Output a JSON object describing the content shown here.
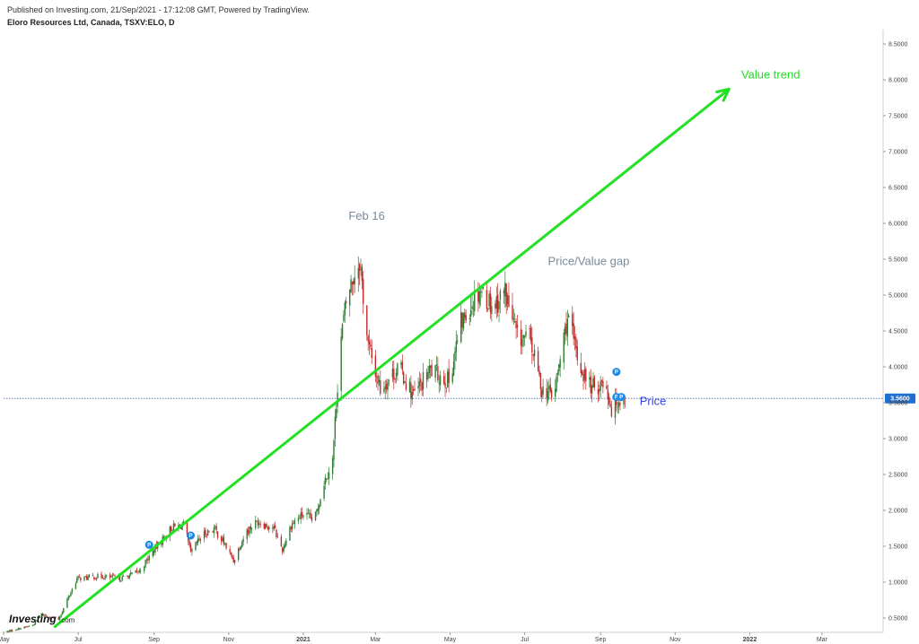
{
  "header": {
    "published": "Published on Investing.com, 21/Sep/2021 - 17:12:08 GMT, Powered by TradingView.",
    "symbol": "Eloro Resources Ltd, Canada, TSXV:ELO, D"
  },
  "logo": {
    "name": "Investing",
    "suffix": ".com"
  },
  "colors": {
    "up": "#2e7d32",
    "down": "#c62828",
    "trend": "#22e022",
    "price_line": "#4a6fa5",
    "price_tag": "#1f6fd1",
    "marker": "#1e88e5"
  },
  "chart_data": {
    "type": "candlestick",
    "title": "Eloro Resources Ltd, Canada, TSXV:ELO, D",
    "ylim": [
      0.3,
      8.7
    ],
    "y_ticks": [
      {
        "value": 0.5,
        "label": "0.5000"
      },
      {
        "value": 1.0,
        "label": "1.0000"
      },
      {
        "value": 1.5,
        "label": "1.5000"
      },
      {
        "value": 2.0,
        "label": "2.0000"
      },
      {
        "value": 2.5,
        "label": "2.5000"
      },
      {
        "value": 3.0,
        "label": "3.0000"
      },
      {
        "value": 3.5,
        "label": "3.5000"
      },
      {
        "value": 4.0,
        "label": "4.0000"
      },
      {
        "value": 4.5,
        "label": "4.5000"
      },
      {
        "value": 5.0,
        "label": "5.0000"
      },
      {
        "value": 5.5,
        "label": "5.5000"
      },
      {
        "value": 6.0,
        "label": "6.0000"
      },
      {
        "value": 6.5,
        "label": "6.5000"
      },
      {
        "value": 7.0,
        "label": "7.0000"
      },
      {
        "value": 7.5,
        "label": "7.5000"
      },
      {
        "value": 8.0,
        "label": "8.0000"
      },
      {
        "value": 8.5,
        "label": "8.5000"
      }
    ],
    "xlim": [
      "2020-05-01",
      "2022-04-20"
    ],
    "x_ticks": [
      {
        "date": "2020-05-01",
        "label": "May",
        "bold": false
      },
      {
        "date": "2020-07-01",
        "label": "Jul",
        "bold": false
      },
      {
        "date": "2020-09-01",
        "label": "Sep",
        "bold": false
      },
      {
        "date": "2020-11-01",
        "label": "Nov",
        "bold": false
      },
      {
        "date": "2021-01-01",
        "label": "2021",
        "bold": true
      },
      {
        "date": "2021-03-01",
        "label": "Mar",
        "bold": false
      },
      {
        "date": "2021-05-01",
        "label": "May",
        "bold": false
      },
      {
        "date": "2021-07-01",
        "label": "Jul",
        "bold": false
      },
      {
        "date": "2021-09-01",
        "label": "Sep",
        "bold": false
      },
      {
        "date": "2021-11-01",
        "label": "Nov",
        "bold": false
      },
      {
        "date": "2022-01-01",
        "label": "2022",
        "bold": true
      },
      {
        "date": "2022-03-01",
        "label": "Mar",
        "bold": false
      }
    ],
    "price_path": [
      [
        "2020-05-01",
        0.3
      ],
      [
        "2020-05-25",
        0.4
      ],
      [
        "2020-06-01",
        0.55
      ],
      [
        "2020-06-15",
        0.48
      ],
      [
        "2020-06-22",
        0.75
      ],
      [
        "2020-06-30",
        1.05
      ],
      [
        "2020-07-20",
        1.08
      ],
      [
        "2020-08-05",
        1.05
      ],
      [
        "2020-08-20",
        1.15
      ],
      [
        "2020-09-01",
        1.45
      ],
      [
        "2020-09-15",
        1.75
      ],
      [
        "2020-09-25",
        1.8
      ],
      [
        "2020-10-01",
        1.4
      ],
      [
        "2020-10-10",
        1.65
      ],
      [
        "2020-10-20",
        1.75
      ],
      [
        "2020-10-28",
        1.55
      ],
      [
        "2020-11-05",
        1.3
      ],
      [
        "2020-11-15",
        1.7
      ],
      [
        "2020-11-25",
        1.85
      ],
      [
        "2020-12-08",
        1.75
      ],
      [
        "2020-12-15",
        1.45
      ],
      [
        "2020-12-22",
        1.8
      ],
      [
        "2021-01-01",
        1.95
      ],
      [
        "2021-01-10",
        1.85
      ],
      [
        "2021-01-18",
        2.4
      ],
      [
        "2021-01-25",
        2.7
      ],
      [
        "2021-01-31",
        4.3
      ],
      [
        "2021-02-06",
        5.0
      ],
      [
        "2021-02-16",
        5.5
      ],
      [
        "2021-02-23",
        4.3
      ],
      [
        "2021-03-05",
        3.7
      ],
      [
        "2021-03-20",
        4.0
      ],
      [
        "2021-04-01",
        3.6
      ],
      [
        "2021-04-15",
        3.95
      ],
      [
        "2021-04-30",
        3.8
      ],
      [
        "2021-05-10",
        4.6
      ],
      [
        "2021-05-25",
        5.1
      ],
      [
        "2021-06-05",
        4.85
      ],
      [
        "2021-06-15",
        5.05
      ],
      [
        "2021-06-25",
        4.4
      ],
      [
        "2021-07-05",
        4.4
      ],
      [
        "2021-07-15",
        3.7
      ],
      [
        "2021-07-25",
        3.6
      ],
      [
        "2021-08-05",
        4.7
      ],
      [
        "2021-08-15",
        4.0
      ],
      [
        "2021-08-25",
        3.7
      ],
      [
        "2021-09-05",
        3.8
      ],
      [
        "2021-09-10",
        3.4
      ],
      [
        "2021-09-15",
        3.55
      ],
      [
        "2021-09-21",
        3.56
      ]
    ],
    "last_price": {
      "value": 3.56,
      "label": "3.5600"
    },
    "trend_line": {
      "from": [
        "2020-06-12",
        0.38
      ],
      "to": [
        "2021-12-15",
        7.87
      ]
    },
    "markers": [
      {
        "date": "2020-08-28",
        "value": 1.52,
        "label": "P"
      },
      {
        "date": "2020-10-01",
        "value": 1.65,
        "label": "P"
      },
      {
        "date": "2021-09-14",
        "value": 3.93,
        "label": "P"
      },
      {
        "date": "2021-09-14",
        "value": 3.58,
        "label": "P"
      },
      {
        "date": "2021-09-18",
        "value": 3.58,
        "label": "P"
      }
    ],
    "annotations": [
      {
        "text": "Feb 16",
        "date": "2021-02-07",
        "value": 6.05,
        "style": "grey"
      },
      {
        "text": "Value trend",
        "date": "2021-12-25",
        "value": 8.02,
        "style": "green"
      },
      {
        "text": "Price/Value gap",
        "date": "2021-07-20",
        "value": 5.42,
        "style": "grey"
      },
      {
        "text": "Price",
        "date": "2021-10-03",
        "value": 3.47,
        "style": "blue"
      }
    ]
  }
}
